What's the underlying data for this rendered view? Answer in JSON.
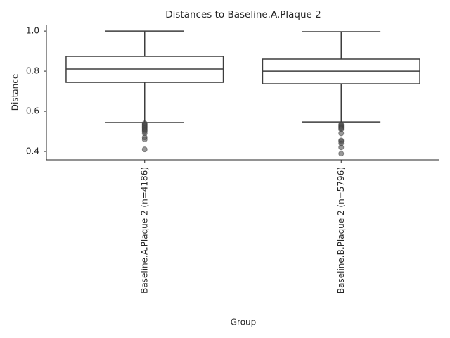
{
  "chart_data": {
    "type": "box",
    "title": "Distances to Baseline.A.Plaque 2",
    "xlabel": "Group",
    "ylabel": "Distance",
    "categories": [
      "Baseline.A.Plaque 2 (n=4186)",
      "Baseline.B.Plaque 2 (n=5796)"
    ],
    "boxes": [
      {
        "whislo": 0.544,
        "q1": 0.744,
        "med": 0.811,
        "q3": 0.874,
        "whishi": 1.0,
        "fliers": [
          0.54,
          0.535,
          0.53,
          0.525,
          0.52,
          0.515,
          0.51,
          0.505,
          0.5,
          0.49,
          0.47,
          0.46,
          0.41
        ]
      },
      {
        "whislo": 0.547,
        "q1": 0.737,
        "med": 0.8,
        "q3": 0.86,
        "whishi": 0.997,
        "fliers": [
          0.535,
          0.53,
          0.525,
          0.52,
          0.515,
          0.51,
          0.49,
          0.455,
          0.45,
          0.44,
          0.42,
          0.389
        ]
      }
    ],
    "box_color": "#ffffff",
    "edge_color": "#3d3d3d",
    "flier_color": "#555555",
    "ylim": [
      0.358,
      1.032
    ],
    "yticks": [
      0.4,
      0.6,
      0.8,
      {
        "value": 1.0,
        "label": "1.0"
      }
    ],
    "grid": false
  }
}
